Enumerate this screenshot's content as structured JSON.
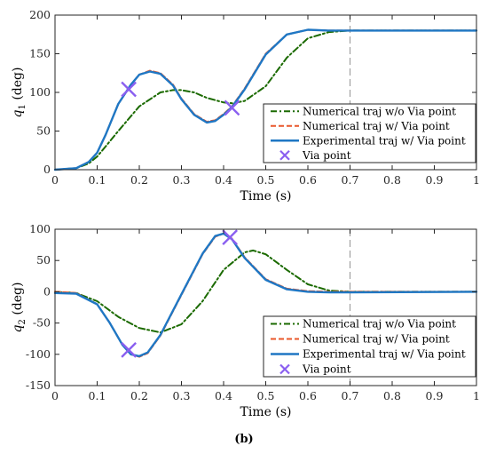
{
  "caption": "(b)",
  "chart_data": [
    {
      "type": "line",
      "ylabel_symbol": "q",
      "ylabel_sub": "1",
      "ylabel_unit": "(deg)",
      "xlabel": "Time (s)",
      "xlim": [
        0,
        1
      ],
      "ylim": [
        0,
        200
      ],
      "xticks": [
        0,
        0.1,
        0.2,
        0.3,
        0.4,
        0.5,
        0.6,
        0.7,
        0.8,
        0.9,
        1
      ],
      "yticks": [
        0,
        50,
        100,
        150,
        200
      ],
      "xtick_labels": [
        "0",
        "0.1",
        "0.2",
        "0.3",
        "0.4",
        "0.5",
        "0.6",
        "0.7",
        "0.8",
        "0.9",
        "1"
      ],
      "ytick_labels": [
        "0",
        "50",
        "100",
        "150",
        "200"
      ],
      "vline_x": 0.7,
      "legend_position": "right",
      "series": [
        {
          "name": "Numerical traj w/o Via point",
          "color": "#1b6a00",
          "style": "dashdot",
          "x": [
            0,
            0.05,
            0.08,
            0.1,
            0.12,
            0.15,
            0.2,
            0.25,
            0.28,
            0.3,
            0.33,
            0.36,
            0.4,
            0.42,
            0.45,
            0.5,
            0.55,
            0.6,
            0.65,
            0.7,
            0.8,
            1.0
          ],
          "y": [
            0,
            2,
            8,
            17,
            30,
            50,
            82,
            100,
            103,
            103,
            100,
            93,
            87,
            86,
            89,
            108,
            145,
            170,
            178,
            180,
            180,
            180
          ]
        },
        {
          "name": "Numerical traj w/ Via point",
          "color": "#e8572a",
          "style": "dashed",
          "x": [
            0,
            0.05,
            0.08,
            0.1,
            0.12,
            0.15,
            0.18,
            0.2,
            0.225,
            0.25,
            0.28,
            0.3,
            0.33,
            0.36,
            0.38,
            0.4,
            0.42,
            0.45,
            0.5,
            0.55,
            0.6,
            0.65,
            0.7,
            0.8,
            1.0
          ],
          "y": [
            0,
            2,
            10,
            22,
            45,
            85,
            110,
            123,
            128,
            125,
            110,
            92,
            72,
            62,
            64,
            72,
            82,
            105,
            150,
            175,
            181,
            180,
            180,
            180,
            180
          ]
        },
        {
          "name": "Experimental traj w/ Via point",
          "color": "#1f77c4",
          "style": "solid",
          "x": [
            0,
            0.05,
            0.08,
            0.1,
            0.12,
            0.15,
            0.18,
            0.2,
            0.225,
            0.25,
            0.28,
            0.3,
            0.33,
            0.36,
            0.38,
            0.4,
            0.42,
            0.45,
            0.5,
            0.55,
            0.6,
            0.65,
            0.7,
            0.8,
            1.0
          ],
          "y": [
            0,
            2,
            10,
            22,
            45,
            85,
            110,
            123,
            127,
            124,
            109,
            91,
            71,
            61,
            63,
            71,
            81,
            104,
            149,
            175,
            181,
            180,
            180,
            180,
            180
          ]
        }
      ],
      "via_points": {
        "name": "Via point",
        "color": "#8a5ff0",
        "x": [
          0.175,
          0.42
        ],
        "y": [
          104,
          80
        ]
      }
    },
    {
      "type": "line",
      "ylabel_symbol": "q",
      "ylabel_sub": "2",
      "ylabel_unit": "(deg)",
      "xlabel": "Time (s)",
      "xlim": [
        0,
        1
      ],
      "ylim": [
        -150,
        100
      ],
      "xticks": [
        0,
        0.1,
        0.2,
        0.3,
        0.4,
        0.5,
        0.6,
        0.7,
        0.8,
        0.9,
        1
      ],
      "yticks": [
        -150,
        -100,
        -50,
        0,
        50,
        100
      ],
      "xtick_labels": [
        "0",
        "0.1",
        "0.2",
        "0.3",
        "0.4",
        "0.5",
        "0.6",
        "0.7",
        "0.8",
        "0.9",
        "1"
      ],
      "ytick_labels": [
        "-150",
        "-100",
        "-50",
        "0",
        "50",
        "100"
      ],
      "vline_x": 0.7,
      "legend_position": "bottom-right",
      "series": [
        {
          "name": "Numerical traj w/o Via point",
          "color": "#1b6a00",
          "style": "dashdot",
          "x": [
            0,
            0.05,
            0.1,
            0.15,
            0.2,
            0.25,
            0.3,
            0.35,
            0.4,
            0.45,
            0.47,
            0.5,
            0.55,
            0.6,
            0.65,
            0.7,
            1.0
          ],
          "y": [
            0,
            -2,
            -15,
            -40,
            -58,
            -65,
            -52,
            -15,
            35,
            63,
            66,
            60,
            35,
            12,
            2,
            0,
            0
          ]
        },
        {
          "name": "Numerical traj w/ Via point",
          "color": "#e8572a",
          "style": "dashed",
          "x": [
            0,
            0.05,
            0.1,
            0.13,
            0.16,
            0.18,
            0.2,
            0.22,
            0.25,
            0.3,
            0.35,
            0.38,
            0.4,
            0.42,
            0.45,
            0.5,
            0.55,
            0.6,
            0.65,
            0.7,
            1.0
          ],
          "y": [
            0,
            -2,
            -20,
            -50,
            -85,
            -100,
            -104,
            -98,
            -70,
            -5,
            60,
            88,
            93,
            85,
            55,
            20,
            5,
            1,
            0,
            0,
            0
          ]
        },
        {
          "name": "Experimental traj w/ Via point",
          "color": "#1f77c4",
          "style": "solid",
          "x": [
            0,
            0.05,
            0.1,
            0.13,
            0.16,
            0.18,
            0.2,
            0.22,
            0.25,
            0.3,
            0.35,
            0.38,
            0.4,
            0.42,
            0.45,
            0.5,
            0.55,
            0.6,
            0.65,
            0.7,
            1.0
          ],
          "y": [
            -2,
            -3,
            -20,
            -50,
            -85,
            -100,
            -103,
            -97,
            -69,
            -4,
            61,
            89,
            93,
            84,
            54,
            19,
            4,
            0,
            -1,
            -1,
            0
          ]
        }
      ],
      "via_points": {
        "name": "Via point",
        "color": "#8a5ff0",
        "x": [
          0.175,
          0.415
        ],
        "y": [
          -93,
          87
        ]
      }
    }
  ]
}
